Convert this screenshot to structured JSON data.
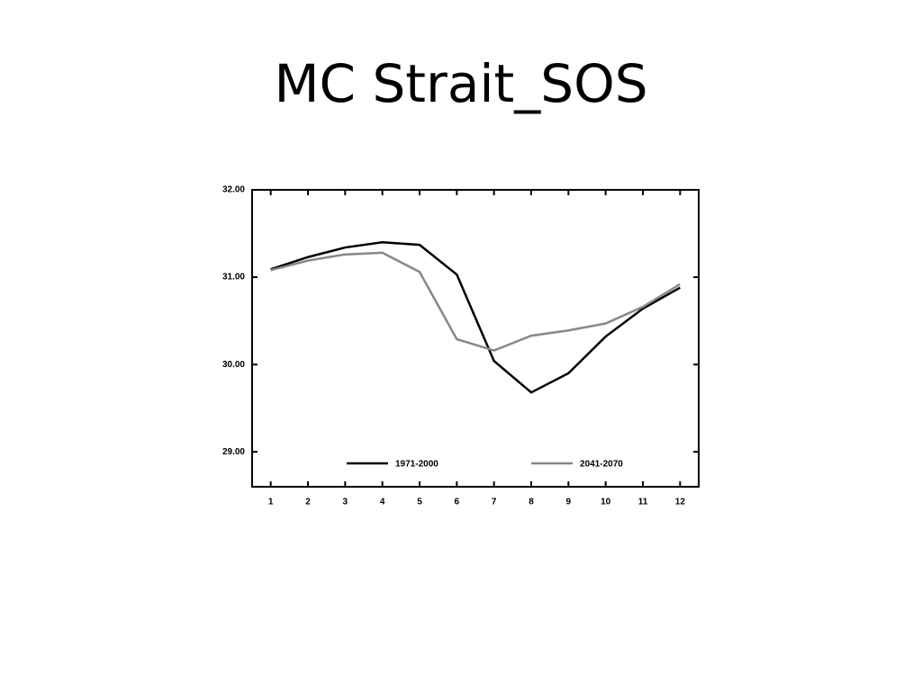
{
  "chart_data": {
    "type": "line",
    "title": "MC Strait_SOS",
    "x": [
      1,
      2,
      3,
      4,
      5,
      6,
      7,
      8,
      9,
      10,
      11,
      12
    ],
    "series": [
      {
        "name": "1971-2000",
        "color": "#000000",
        "values": [
          31.09,
          31.23,
          31.34,
          31.4,
          31.37,
          31.03,
          30.04,
          29.68,
          29.9,
          30.32,
          30.64,
          30.88
        ]
      },
      {
        "name": "2041-2070",
        "color": "#888888",
        "values": [
          31.08,
          31.19,
          31.26,
          31.28,
          31.06,
          30.29,
          30.16,
          30.33,
          30.39,
          30.47,
          30.66,
          30.92
        ]
      }
    ],
    "xlim": [
      0.5,
      12.5
    ],
    "xticks": [
      1,
      2,
      3,
      4,
      5,
      6,
      7,
      8,
      9,
      10,
      11,
      12
    ],
    "ylim": [
      28.6,
      32
    ],
    "yticks": [
      {
        "value": 29,
        "label": "29.00"
      },
      {
        "value": 30,
        "label": "30.00"
      },
      {
        "value": 31,
        "label": "31.00"
      },
      {
        "value": 32,
        "label": "32.00"
      }
    ],
    "legend": "bottom"
  }
}
